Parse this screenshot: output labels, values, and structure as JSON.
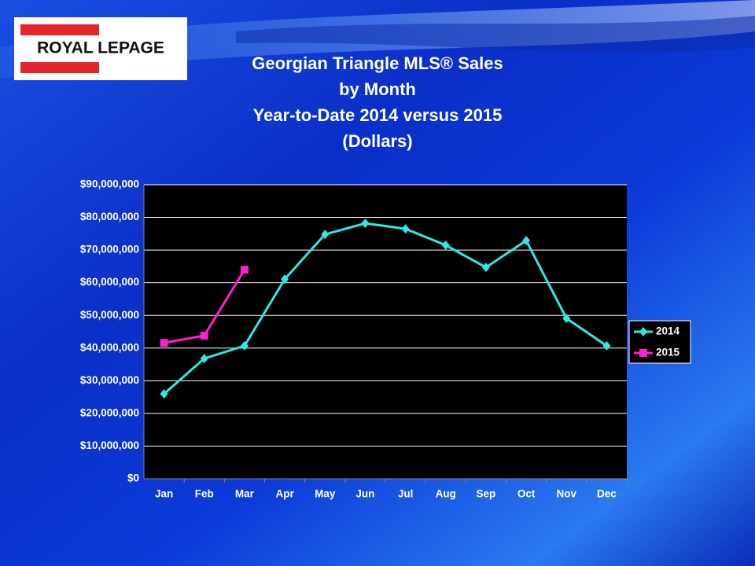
{
  "logo": {
    "text": "ROYAL LEPAGE"
  },
  "chart_data": {
    "type": "line",
    "title": [
      "Georgian Triangle MLS®  Sales",
      "by Month",
      "Year-to-Date 2014 versus 2015",
      "(Dollars)"
    ],
    "categories": [
      "Jan",
      "Feb",
      "Mar",
      "Apr",
      "May",
      "Jun",
      "Jul",
      "Aug",
      "Sep",
      "Oct",
      "Nov",
      "Dec"
    ],
    "series": [
      {
        "name": "2014",
        "color": "#33e6e6",
        "marker": "diamond",
        "values": [
          26000000,
          36800000,
          40700000,
          61100000,
          74800000,
          78200000,
          76500000,
          71500000,
          64700000,
          72900000,
          49100000,
          40700000
        ]
      },
      {
        "name": "2015",
        "color": "#ff1fd0",
        "marker": "square",
        "values": [
          41600000,
          43800000,
          64000000,
          null,
          null,
          null,
          null,
          null,
          null,
          null,
          null,
          null
        ]
      }
    ],
    "ylim": [
      0,
      90000000
    ],
    "yticks": [
      {
        "value": 0,
        "label": "$0"
      },
      {
        "value": 10000000,
        "label": "$10,000,000"
      },
      {
        "value": 20000000,
        "label": "$20,000,000"
      },
      {
        "value": 30000000,
        "label": "$30,000,000"
      },
      {
        "value": 40000000,
        "label": "$40,000,000"
      },
      {
        "value": 50000000,
        "label": "$50,000,000"
      },
      {
        "value": 60000000,
        "label": "$60,000,000"
      },
      {
        "value": 70000000,
        "label": "$70,000,000"
      },
      {
        "value": 80000000,
        "label": "$80,000,000"
      },
      {
        "value": 90000000,
        "label": "$90,000,000"
      }
    ],
    "grid": true,
    "legend": "right"
  }
}
